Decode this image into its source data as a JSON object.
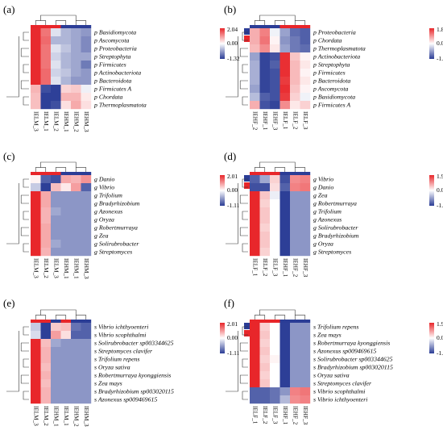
{
  "panels": [
    {
      "label": "(a)",
      "columns": [
        "IELM_3",
        "IELM_1",
        "IELM_2",
        "IEHM_1",
        "IEHM_2",
        "IEHM_3"
      ],
      "groups": [
        "IELM",
        "IELM",
        "IELM",
        "IEHM",
        "IEHM",
        "IEHM"
      ],
      "rows": [
        "p_Basidiomycota",
        "p_Ascomycota",
        "p_Proteobacteria",
        "p_Streptophyta",
        "p_Firmicutes",
        "p_Actinobacteriota",
        "p_Bacteroidota",
        "p_Firmicutes_A",
        "p_Chordata",
        "p_Thermoplasmatota"
      ],
      "values": [
        [
          2.0,
          1.3,
          -0.2,
          -0.5,
          -0.6,
          -0.7
        ],
        [
          2.0,
          1.4,
          -0.5,
          -0.5,
          -0.6,
          -0.8
        ],
        [
          2.0,
          1.3,
          -0.2,
          -0.4,
          -0.6,
          -0.8
        ],
        [
          2.0,
          1.3,
          -0.3,
          -0.5,
          -0.6,
          -0.6
        ],
        [
          2.0,
          1.3,
          -0.2,
          -0.5,
          -0.6,
          -0.9
        ],
        [
          2.0,
          1.4,
          -0.3,
          -0.4,
          -0.6,
          -0.7
        ],
        [
          2.0,
          1.4,
          -0.2,
          -0.5,
          -0.7,
          -0.7
        ],
        [
          0.7,
          -1.2,
          -1.3,
          0.4,
          0.5,
          -0.1
        ],
        [
          0.6,
          -1.3,
          -1.3,
          0.7,
          0.7,
          0.2
        ],
        [
          0.6,
          -1.3,
          -1.2,
          0.3,
          0.8,
          0.3
        ]
      ],
      "scale": {
        "max": "2.04",
        "mid": "0.00",
        "min": "-1.32"
      },
      "legend": [
        "IEHM",
        "IELM"
      ]
    },
    {
      "label": "(b)",
      "columns": [
        "IEHF_2",
        "IEHF_1",
        "IEHF_3",
        "IELF_1",
        "IELF_2",
        "IELF_3"
      ],
      "groups": [
        "IEHF",
        "IEHF",
        "IEHF",
        "IELF",
        "IELF",
        "IELF"
      ],
      "rows": [
        "p_Proteobacteria",
        "p_Chordata",
        "p_Thermoplasmatota",
        "p_Actinobacteriota",
        "p_Streptophyta",
        "p_Firmicutes",
        "p_Bacteroidota",
        "p_Ascomycota",
        "p_Basidiomycota",
        "p_Firmicutes_A"
      ],
      "values": [
        [
          0.7,
          1.1,
          -0.1,
          -0.7,
          -1.1,
          -1.2
        ],
        [
          0.7,
          1.2,
          0.1,
          -0.8,
          -1.0,
          -1.2
        ],
        [
          0.6,
          1.0,
          0.2,
          -0.7,
          -1.0,
          -1.1
        ],
        [
          -0.7,
          -1.4,
          -1.3,
          1.8,
          0.5,
          0.1
        ],
        [
          -0.6,
          -1.4,
          -1.2,
          1.8,
          0.6,
          0.2
        ],
        [
          -0.6,
          -1.4,
          -1.3,
          1.8,
          0.6,
          0.1
        ],
        [
          -0.6,
          -1.4,
          -1.3,
          1.7,
          0.6,
          0.2
        ],
        [
          -0.7,
          -1.4,
          -1.3,
          1.8,
          0.5,
          0.1
        ],
        [
          -0.5,
          -1.2,
          -1.3,
          1.7,
          0.4,
          -0.1
        ],
        [
          0.7,
          -1.3,
          -1.4,
          1.0,
          0.2,
          0.4
        ]
      ],
      "scale": {
        "max": "1.88",
        "mid": "0.00",
        "min": "-1.46"
      },
      "legend": [
        "IEHF",
        "IELF"
      ]
    },
    {
      "label": "(c)",
      "columns": [
        "IELM_3",
        "IELM_2",
        "IELM_3",
        "IEHM_1",
        "IEHM_1",
        "IEHM_3"
      ],
      "groups": [
        "IELM",
        "IELM",
        "IELM",
        "IEHM",
        "IEHM",
        "IEHM"
      ],
      "rows": [
        "g_Danio",
        "g_Vibrio",
        "g_Trifolium",
        "g_Bradyrhizobium",
        "g_Azonexus",
        "g_Oryza",
        "g_Robertmurraya",
        "g_Zea",
        "g_Solirubrobacter",
        "g_Streptomyces"
      ],
      "values": [
        [
          0.1,
          -0.9,
          -1.0,
          0.8,
          0.7,
          1.0
        ],
        [
          -0.3,
          -1.1,
          0.6,
          0.2,
          0.9,
          -0.9
        ],
        [
          2.0,
          0.8,
          -0.6,
          -0.6,
          -0.6,
          -0.6
        ],
        [
          2.0,
          0.8,
          -0.6,
          -0.6,
          -0.6,
          -0.6
        ],
        [
          2.0,
          0.7,
          -0.5,
          -0.6,
          -0.6,
          -0.6
        ],
        [
          2.0,
          0.7,
          -0.6,
          -0.6,
          -0.6,
          -0.6
        ],
        [
          2.0,
          0.8,
          -0.6,
          -0.6,
          -0.6,
          -0.6
        ],
        [
          2.0,
          0.8,
          -0.6,
          -0.6,
          -0.6,
          -0.6
        ],
        [
          2.0,
          0.8,
          -0.5,
          -0.6,
          -0.6,
          -0.6
        ],
        [
          2.0,
          0.7,
          -0.6,
          -0.6,
          -0.6,
          -0.6
        ]
      ],
      "scale": {
        "max": "2.01",
        "mid": "0.00",
        "min": "-1.11"
      },
      "legend": [
        "IEHM",
        "IELM"
      ]
    },
    {
      "label": "(d)",
      "columns": [
        "IELF_1",
        "IELF_2",
        "IELF_3",
        "IEHF_1",
        "IEHF_2",
        "IEHF_3"
      ],
      "groups": [
        "IELF",
        "IELF",
        "IELF",
        "IEHF",
        "IEHF",
        "IEHF"
      ],
      "rows": [
        "g_Vibrio",
        "g_Danio",
        "g_Zea",
        "g_Robertmurraya",
        "g_Trifolium",
        "g_Azonexus",
        "g_Solirubrobacter",
        "g_Bradyrhizobium",
        "g_Oryza",
        "g_Streptomyces"
      ],
      "values": [
        [
          -0.9,
          -0.5,
          0.4,
          -1.0,
          1.0,
          1.1
        ],
        [
          -1.0,
          -1.0,
          0.3,
          -0.9,
          1.1,
          1.2
        ],
        [
          1.9,
          0.5,
          -0.1,
          -1.1,
          -0.6,
          -0.6
        ],
        [
          1.9,
          0.4,
          0.0,
          -1.1,
          -0.6,
          -0.6
        ],
        [
          1.9,
          0.5,
          0.0,
          -1.1,
          -0.6,
          -0.6
        ],
        [
          1.9,
          0.5,
          0.0,
          -1.1,
          -0.6,
          -0.6
        ],
        [
          1.9,
          0.4,
          0.0,
          -1.1,
          -0.6,
          -0.6
        ],
        [
          1.9,
          0.5,
          0.0,
          -1.1,
          -0.6,
          -0.6
        ],
        [
          1.9,
          0.5,
          0.0,
          -1.1,
          -0.6,
          -0.6
        ],
        [
          1.9,
          0.4,
          0.0,
          -1.1,
          -0.6,
          -0.6
        ]
      ],
      "scale": {
        "max": "1.91",
        "mid": "0.00",
        "min": "-1.11"
      },
      "legend": [
        "IEHF",
        "IELF"
      ]
    },
    {
      "label": "(e)",
      "columns": [
        "IELM_3",
        "IELM_2",
        "IEHM_1",
        "IELM_1",
        "IEHM_2",
        "IEHM_3"
      ],
      "groups": [
        "IELM",
        "IELM",
        "IEHM",
        "IELM",
        "IEHM",
        "IEHM"
      ],
      "rows": [
        "s_Vibrio_ichthyoenteri",
        "s_Vibrio_scophthalmi",
        "s_Solirubrobacter_sp003344625",
        "s_Streptomyces_clavifer",
        "s_Trifolium_repens",
        "s_Oryza_sativa",
        "s_Robertmurraya_kyonggiensis",
        "s_Zea_mays",
        "s_Bradyrhizobium_sp003020115",
        "s_Azonexus_sp009469615"
      ],
      "values": [
        [
          -0.3,
          -1.1,
          0.5,
          0.6,
          -0.8,
          -0.9
        ],
        [
          -0.2,
          -1.1,
          0.9,
          0.3,
          -0.9,
          -0.9
        ],
        [
          2.0,
          0.6,
          -0.5,
          -0.6,
          -0.6,
          -0.6
        ],
        [
          2.0,
          0.7,
          -0.6,
          -0.6,
          -0.6,
          -0.6
        ],
        [
          2.0,
          0.7,
          -0.6,
          -0.6,
          -0.6,
          -0.6
        ],
        [
          2.0,
          0.6,
          -0.6,
          -0.6,
          -0.6,
          -0.6
        ],
        [
          2.0,
          0.7,
          -0.6,
          -0.6,
          -0.6,
          -0.6
        ],
        [
          2.0,
          0.6,
          -0.6,
          -0.6,
          -0.6,
          -0.6
        ],
        [
          2.0,
          0.7,
          -0.6,
          -0.6,
          -0.6,
          -0.6
        ],
        [
          2.0,
          0.7,
          -0.6,
          -0.6,
          -0.6,
          -0.6
        ]
      ],
      "scale": {
        "max": "2.01",
        "mid": "0.00",
        "min": "-1.11"
      },
      "legend": [
        "IEHM",
        "IELM"
      ]
    },
    {
      "label": "(f)",
      "columns": [
        "IELF_1",
        "IELF_2",
        "IELF_3",
        "IEHF_1",
        "IEHF_2",
        "IEHF_3"
      ],
      "groups": [
        "IELF",
        "IELF",
        "IELF",
        "IEHF",
        "IEHF",
        "IEHF"
      ],
      "rows": [
        "s_Trifolium_repens",
        "s_Zea_mays",
        "s_Robertmurraya_kyonggiensis",
        "s_Azonexus_sp009469615",
        "s_Solirubrobacter_sp003344625",
        "s_Bradyrhizobium_sp003020115",
        "s_Oryza_sativa",
        "s_Streptomyces_clavifer",
        "s_Vibrio_scophthalmi",
        "s_Vibrio_ichthyoenteri"
      ],
      "values": [
        [
          1.9,
          0.4,
          0.0,
          -1.1,
          -0.6,
          -0.6
        ],
        [
          1.9,
          0.5,
          0.0,
          -1.1,
          -0.6,
          -0.6
        ],
        [
          1.9,
          0.4,
          0.0,
          -1.1,
          -0.6,
          -0.6
        ],
        [
          1.9,
          0.5,
          0.0,
          -1.1,
          -0.6,
          -0.6
        ],
        [
          1.9,
          0.4,
          0.1,
          -1.1,
          -0.6,
          -0.6
        ],
        [
          1.9,
          0.5,
          0.0,
          -1.1,
          -0.6,
          -0.6
        ],
        [
          1.9,
          0.4,
          0.0,
          -1.1,
          -0.6,
          -0.6
        ],
        [
          1.9,
          0.5,
          0.0,
          -1.1,
          -0.6,
          -0.6
        ],
        [
          -0.9,
          -0.9,
          -0.8,
          -0.6,
          1.1,
          1.2
        ],
        [
          -0.9,
          -0.9,
          -0.8,
          -0.4,
          1.0,
          1.1
        ]
      ],
      "scale": {
        "max": "1.90",
        "mid": "0.00",
        "min": "-1.11"
      },
      "legend": [
        "IEHF",
        "IELF"
      ]
    }
  ],
  "colors": {
    "high": "#e8262a",
    "mid": "#ffffff",
    "low": "#2b3d96",
    "group_high": "#2b3d96",
    "group_low": "#e8262a"
  }
}
